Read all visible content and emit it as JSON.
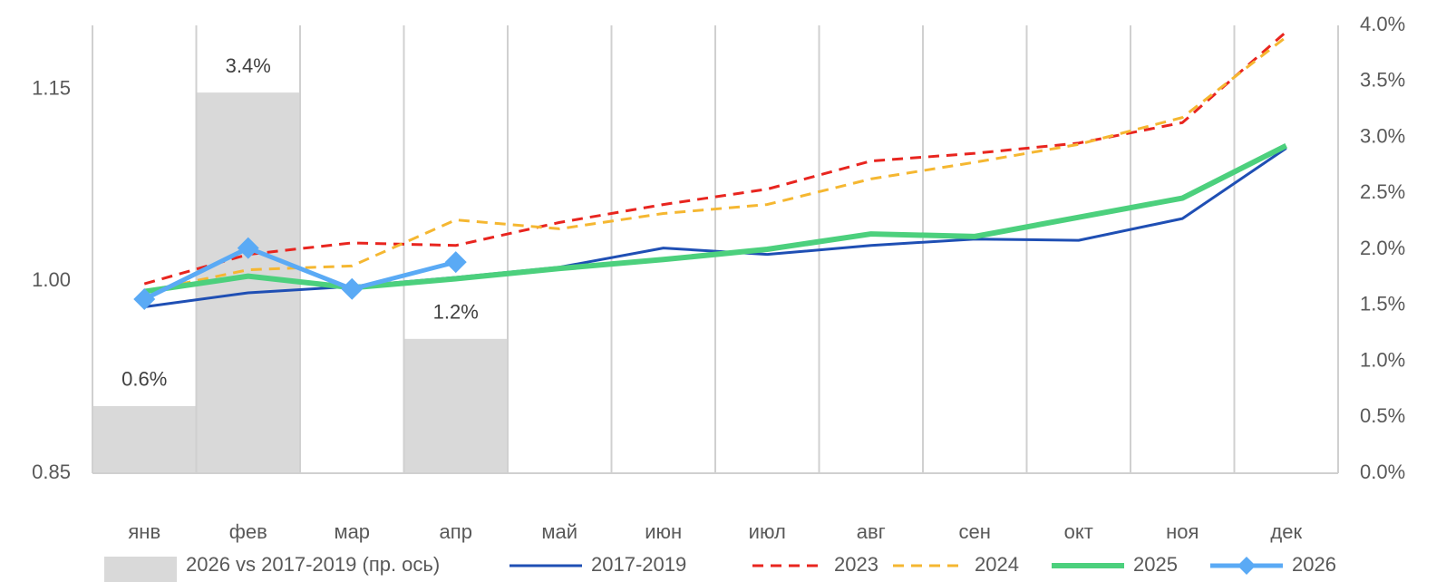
{
  "chart_data": {
    "type": "line",
    "categories": [
      "янв",
      "фев",
      "мар",
      "апр",
      "май",
      "июн",
      "июл",
      "авг",
      "сен",
      "окт",
      "ноя",
      "дек"
    ],
    "ylim": [
      0.85,
      1.2
    ],
    "yticks": [
      {
        "value": 0.85,
        "label": "0.85"
      },
      {
        "value": 1.0,
        "label": "1.00"
      },
      {
        "value": 1.15,
        "label": "1.15"
      }
    ],
    "y2lim": [
      0,
      4
    ],
    "y2ticks": [
      {
        "value": 0,
        "label": "0.0%"
      },
      {
        "value": 0.5,
        "label": "0.5%"
      },
      {
        "value": 1,
        "label": "1.0%"
      },
      {
        "value": 1.5,
        "label": "1.5%"
      },
      {
        "value": 2,
        "label": "2.0%"
      },
      {
        "value": 2.5,
        "label": "2.5%"
      },
      {
        "value": 3,
        "label": "3.0%"
      },
      {
        "value": 3.5,
        "label": "3.5%"
      },
      {
        "value": 4,
        "label": "4.0%"
      }
    ],
    "series": [
      {
        "name": "2026 vs 2017-2019 (пр. ось)",
        "type": "bar",
        "axis": "y2",
        "color": "#d9d9d9",
        "values": [
          0.6,
          3.4,
          null,
          1.2,
          null,
          null,
          null,
          null,
          null,
          null,
          null,
          null
        ],
        "value_labels": [
          "0.6%",
          "3.4%",
          null,
          "1.2%",
          null,
          null,
          null,
          null,
          null,
          null,
          null,
          null
        ]
      },
      {
        "name": "2017-2019",
        "color": "#1f4fb4",
        "style": "solid",
        "values": [
          0.98,
          0.991,
          0.996,
          1.003,
          1.011,
          1.026,
          1.021,
          1.028,
          1.033,
          1.032,
          1.049,
          1.104
        ]
      },
      {
        "name": "2023",
        "color": "#e8251f",
        "style": "dashed",
        "values": [
          0.998,
          1.021,
          1.03,
          1.028,
          1.046,
          1.06,
          1.072,
          1.094,
          1.1,
          1.108,
          1.124,
          1.195
        ]
      },
      {
        "name": "2024",
        "color": "#f5b731",
        "style": "dashed",
        "values": [
          0.992,
          1.009,
          1.012,
          1.048,
          1.041,
          1.053,
          1.06,
          1.08,
          1.093,
          1.107,
          1.128,
          1.191
        ]
      },
      {
        "name": "2025",
        "color": "#4cd07d",
        "style": "thick",
        "values": [
          0.992,
          1.004,
          0.995,
          1.002,
          1.01,
          1.017,
          1.025,
          1.037,
          1.035,
          1.05,
          1.065,
          1.106
        ]
      },
      {
        "name": "2026",
        "color": "#5aaaf5",
        "style": "thick",
        "marker": "diamond",
        "values": [
          0.986,
          1.026,
          0.994,
          1.015,
          null,
          null,
          null,
          null,
          null,
          null,
          null,
          null
        ]
      }
    ]
  }
}
